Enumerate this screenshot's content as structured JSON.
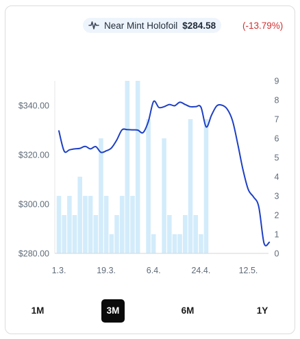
{
  "header": {
    "variant": "Near Mint Holofoil",
    "price": "$284.58",
    "change": "(-13.79%)",
    "icon": "pulse-icon"
  },
  "ranges": {
    "items": [
      "1M",
      "3M",
      "6M",
      "1Y"
    ],
    "active": "3M"
  },
  "colors": {
    "line": "#1d3fc4",
    "bar": "#d3ecfb",
    "change_negative": "#d12f2f",
    "pill_bg": "#eef4fb",
    "active_range_bg": "#0b0b0b"
  },
  "chart_data": {
    "type": "line",
    "price_axis": {
      "ylim": [
        280,
        350
      ],
      "ticks": [
        "$280.00",
        "$300.00",
        "$320.00",
        "$340.00"
      ],
      "tick_values": [
        280,
        300,
        320,
        340
      ]
    },
    "volume_axis": {
      "ylim": [
        0,
        9
      ],
      "ticks": [
        "0",
        "1",
        "2",
        "3",
        "4",
        "5",
        "6",
        "7",
        "8",
        "9"
      ]
    },
    "x_ticks": [
      "1.3.",
      "19.3.",
      "6.4.",
      "24.4.",
      "12.5."
    ],
    "x_tick_days": [
      0,
      18,
      36,
      54,
      72
    ],
    "grid": false,
    "series": [
      {
        "kind": "line",
        "points": [
          {
            "day": 0,
            "value": 329.7
          },
          {
            "day": 2,
            "value": 321.5
          },
          {
            "day": 4,
            "value": 322.0
          },
          {
            "day": 6,
            "value": 322.4
          },
          {
            "day": 8,
            "value": 322.6
          },
          {
            "day": 10,
            "value": 323.4
          },
          {
            "day": 12,
            "value": 322.4
          },
          {
            "day": 14,
            "value": 323.3
          },
          {
            "day": 16,
            "value": 321.0
          },
          {
            "day": 18,
            "value": 321.6
          },
          {
            "day": 20,
            "value": 322.8
          },
          {
            "day": 22,
            "value": 326.0
          },
          {
            "day": 24,
            "value": 330.1
          },
          {
            "day": 26,
            "value": 330.2
          },
          {
            "day": 28,
            "value": 330.1
          },
          {
            "day": 30,
            "value": 330.0
          },
          {
            "day": 32,
            "value": 329.0
          },
          {
            "day": 34,
            "value": 333.5
          },
          {
            "day": 36,
            "value": 341.6
          },
          {
            "day": 38,
            "value": 339.2
          },
          {
            "day": 40,
            "value": 339.5
          },
          {
            "day": 42,
            "value": 340.4
          },
          {
            "day": 44,
            "value": 339.9
          },
          {
            "day": 46,
            "value": 341.3
          },
          {
            "day": 48,
            "value": 340.4
          },
          {
            "day": 50,
            "value": 339.5
          },
          {
            "day": 52,
            "value": 339.5
          },
          {
            "day": 54,
            "value": 339.3
          },
          {
            "day": 56,
            "value": 331.3
          },
          {
            "day": 58,
            "value": 336.0
          },
          {
            "day": 60,
            "value": 339.8
          },
          {
            "day": 62,
            "value": 340.1
          },
          {
            "day": 64,
            "value": 338.5
          },
          {
            "day": 66,
            "value": 333.9
          },
          {
            "day": 68,
            "value": 324.4
          },
          {
            "day": 70,
            "value": 313.9
          },
          {
            "day": 72,
            "value": 305.9
          },
          {
            "day": 74,
            "value": 302.9
          },
          {
            "day": 76,
            "value": 298.9
          },
          {
            "day": 78,
            "value": 284.1
          },
          {
            "day": 80,
            "value": 284.5
          }
        ]
      },
      {
        "kind": "bar",
        "name": "volume",
        "points": [
          {
            "day": 0,
            "value": 3
          },
          {
            "day": 2,
            "value": 2
          },
          {
            "day": 4,
            "value": 3
          },
          {
            "day": 6,
            "value": 2
          },
          {
            "day": 8,
            "value": 4
          },
          {
            "day": 10,
            "value": 3
          },
          {
            "day": 12,
            "value": 3
          },
          {
            "day": 14,
            "value": 2
          },
          {
            "day": 16,
            "value": 6
          },
          {
            "day": 18,
            "value": 3
          },
          {
            "day": 20,
            "value": 1
          },
          {
            "day": 22,
            "value": 2
          },
          {
            "day": 24,
            "value": 3
          },
          {
            "day": 26,
            "value": 9
          },
          {
            "day": 28,
            "value": 3
          },
          {
            "day": 30,
            "value": 9
          },
          {
            "day": 34,
            "value": 7
          },
          {
            "day": 36,
            "value": 1
          },
          {
            "day": 40,
            "value": 6
          },
          {
            "day": 42,
            "value": 2
          },
          {
            "day": 44,
            "value": 1
          },
          {
            "day": 46,
            "value": 1
          },
          {
            "day": 48,
            "value": 2
          },
          {
            "day": 50,
            "value": 7
          },
          {
            "day": 52,
            "value": 2
          },
          {
            "day": 54,
            "value": 1
          },
          {
            "day": 56,
            "value": 7
          }
        ]
      }
    ]
  }
}
